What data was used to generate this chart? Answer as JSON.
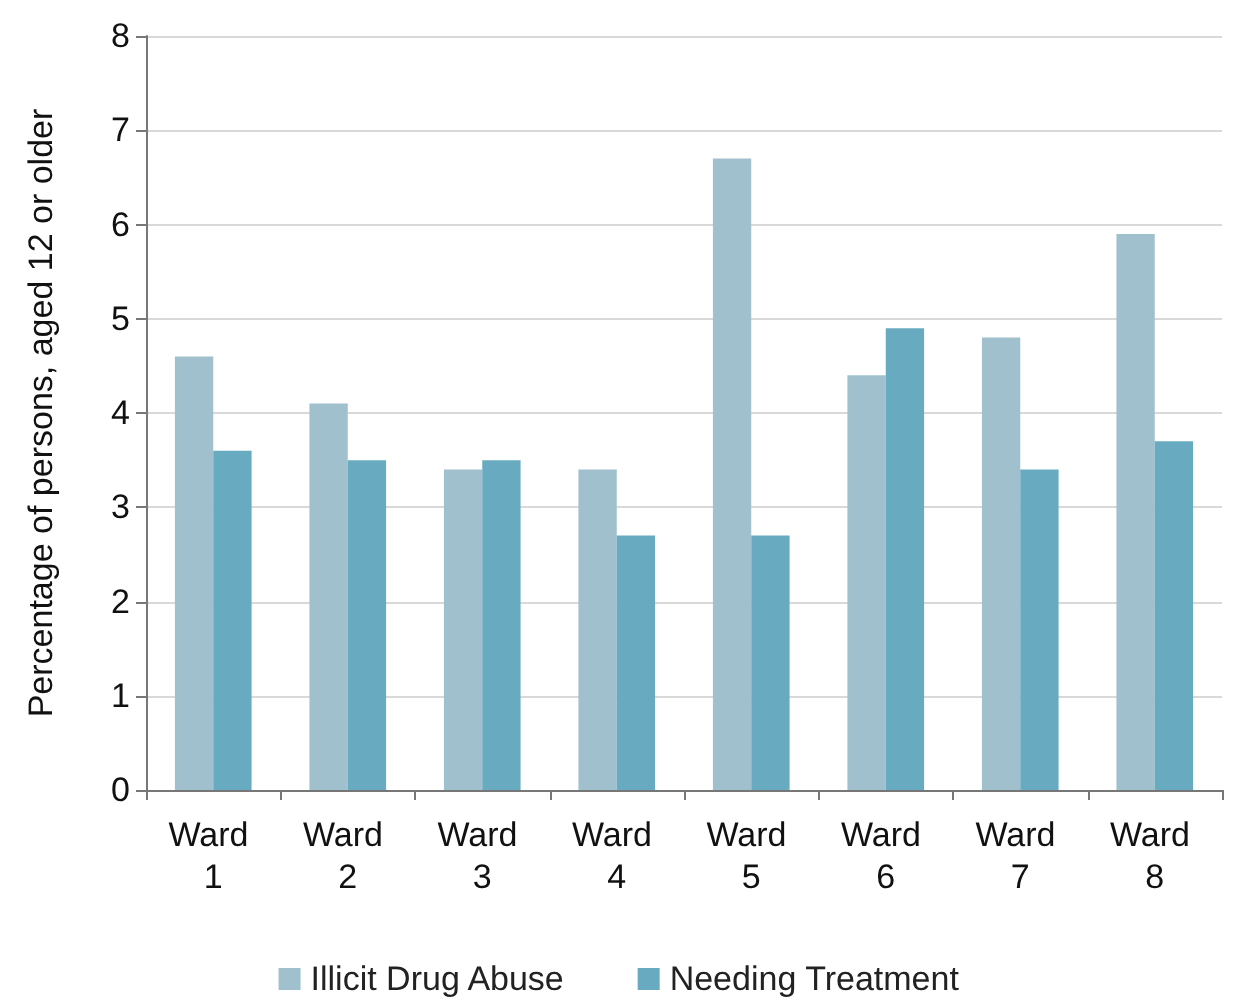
{
  "chart_data": {
    "type": "bar",
    "ylabel": "Percentage of persons, aged 12 or older",
    "categories": [
      "Ward 1",
      "Ward 2",
      "Ward 3",
      "Ward 4",
      "Ward 5",
      "Ward 6",
      "Ward 7",
      "Ward 8"
    ],
    "series": [
      {
        "name": "Illicit Drug Abuse",
        "color": "#9fc0cc",
        "values": [
          4.6,
          4.1,
          3.4,
          3.4,
          6.7,
          4.4,
          4.8,
          5.9
        ]
      },
      {
        "name": "Needing Treatment",
        "color": "#68abc0",
        "values": [
          3.6,
          3.5,
          3.5,
          2.7,
          2.7,
          4.9,
          3.4,
          3.7
        ]
      }
    ],
    "ylim": [
      0,
      8
    ],
    "yticks": [
      0,
      1,
      2,
      3,
      4,
      5,
      6,
      7,
      8
    ],
    "grid": "y",
    "legend": "bottom"
  }
}
